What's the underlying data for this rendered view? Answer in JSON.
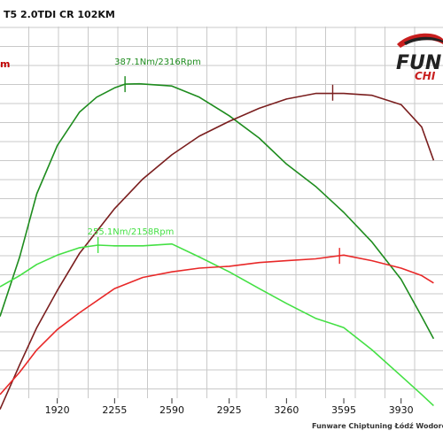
{
  "chart_data": {
    "type": "line",
    "title": "T5 2.0TDI CR 102KM",
    "left_axis_fragment": "m",
    "credit": "Funware Chiptuning Łódź Wodoro",
    "logo": {
      "line1": "FUN",
      "line2": "CHI"
    },
    "xlabel": "",
    "ylabel": "",
    "x_ticks": [
      1920,
      2255,
      2590,
      2925,
      3260,
      3595,
      3930
    ],
    "xlim": [
      1585,
      4175
    ],
    "ylim": [
      0,
      100
    ],
    "grid": true,
    "series": [
      {
        "name": "",
        "color": "#1e8c1e",
        "points": [
          [
            1585,
            22
          ],
          [
            1700,
            38
          ],
          [
            1800,
            55
          ],
          [
            1920,
            68
          ],
          [
            2050,
            77
          ],
          [
            2150,
            81
          ],
          [
            2255,
            83.5
          ],
          [
            2316,
            84.5
          ],
          [
            2400,
            84.6
          ],
          [
            2590,
            84
          ],
          [
            2750,
            81
          ],
          [
            2925,
            76
          ],
          [
            3100,
            70
          ],
          [
            3260,
            63
          ],
          [
            3430,
            57
          ],
          [
            3595,
            50
          ],
          [
            3760,
            42
          ],
          [
            3930,
            32
          ],
          [
            4050,
            22
          ],
          [
            4120,
            16
          ]
        ]
      },
      {
        "name": "",
        "color": "#7a1e1e",
        "points": [
          [
            1585,
            -3
          ],
          [
            1700,
            9
          ],
          [
            1800,
            19
          ],
          [
            1920,
            29
          ],
          [
            2050,
            39
          ],
          [
            2255,
            51
          ],
          [
            2420,
            59
          ],
          [
            2590,
            65.5
          ],
          [
            2750,
            70.5
          ],
          [
            2925,
            74.5
          ],
          [
            3100,
            78
          ],
          [
            3260,
            80.5
          ],
          [
            3430,
            82
          ],
          [
            3595,
            82
          ],
          [
            3760,
            81.5
          ],
          [
            3930,
            79
          ],
          [
            4050,
            73
          ],
          [
            4120,
            64
          ]
        ]
      },
      {
        "name": "",
        "color": "#44e044",
        "points": [
          [
            1585,
            30
          ],
          [
            1700,
            33
          ],
          [
            1800,
            36
          ],
          [
            1920,
            38.5
          ],
          [
            2050,
            40.5
          ],
          [
            2158,
            41.2
          ],
          [
            2255,
            41
          ],
          [
            2420,
            41
          ],
          [
            2590,
            41.5
          ],
          [
            2750,
            38
          ],
          [
            2925,
            34
          ],
          [
            3100,
            29.5
          ],
          [
            3260,
            25.5
          ],
          [
            3430,
            21.5
          ],
          [
            3595,
            19
          ],
          [
            3760,
            13
          ],
          [
            3930,
            6
          ],
          [
            4050,
            1
          ],
          [
            4120,
            -2
          ]
        ]
      },
      {
        "name": "",
        "color": "#e82828",
        "points": [
          [
            1585,
            1
          ],
          [
            1700,
            7
          ],
          [
            1800,
            13
          ],
          [
            1920,
            18.5
          ],
          [
            2050,
            23
          ],
          [
            2255,
            29.5
          ],
          [
            2420,
            32.5
          ],
          [
            2590,
            34
          ],
          [
            2750,
            35
          ],
          [
            2925,
            35.5
          ],
          [
            3100,
            36.5
          ],
          [
            3260,
            37
          ],
          [
            3430,
            37.5
          ],
          [
            3595,
            38.5
          ],
          [
            3760,
            37
          ],
          [
            3930,
            35
          ],
          [
            4050,
            33
          ],
          [
            4120,
            31
          ]
        ]
      }
    ],
    "peaks": [
      {
        "label": "387.1Nm/2316Rpm",
        "color": "#1e8c1e",
        "series": 0,
        "x": 2316,
        "y": 84.5
      },
      {
        "label": "255.1Nm/2158Rpm",
        "color": "#44e044",
        "series": 2,
        "x": 2158,
        "y": 41.2
      },
      {
        "label": "",
        "color": "#7a1e1e",
        "series": 1,
        "x": 3530,
        "y": 82.2
      },
      {
        "label": "",
        "color": "#e82828",
        "series": 3,
        "x": 3570,
        "y": 38.3
      }
    ]
  }
}
